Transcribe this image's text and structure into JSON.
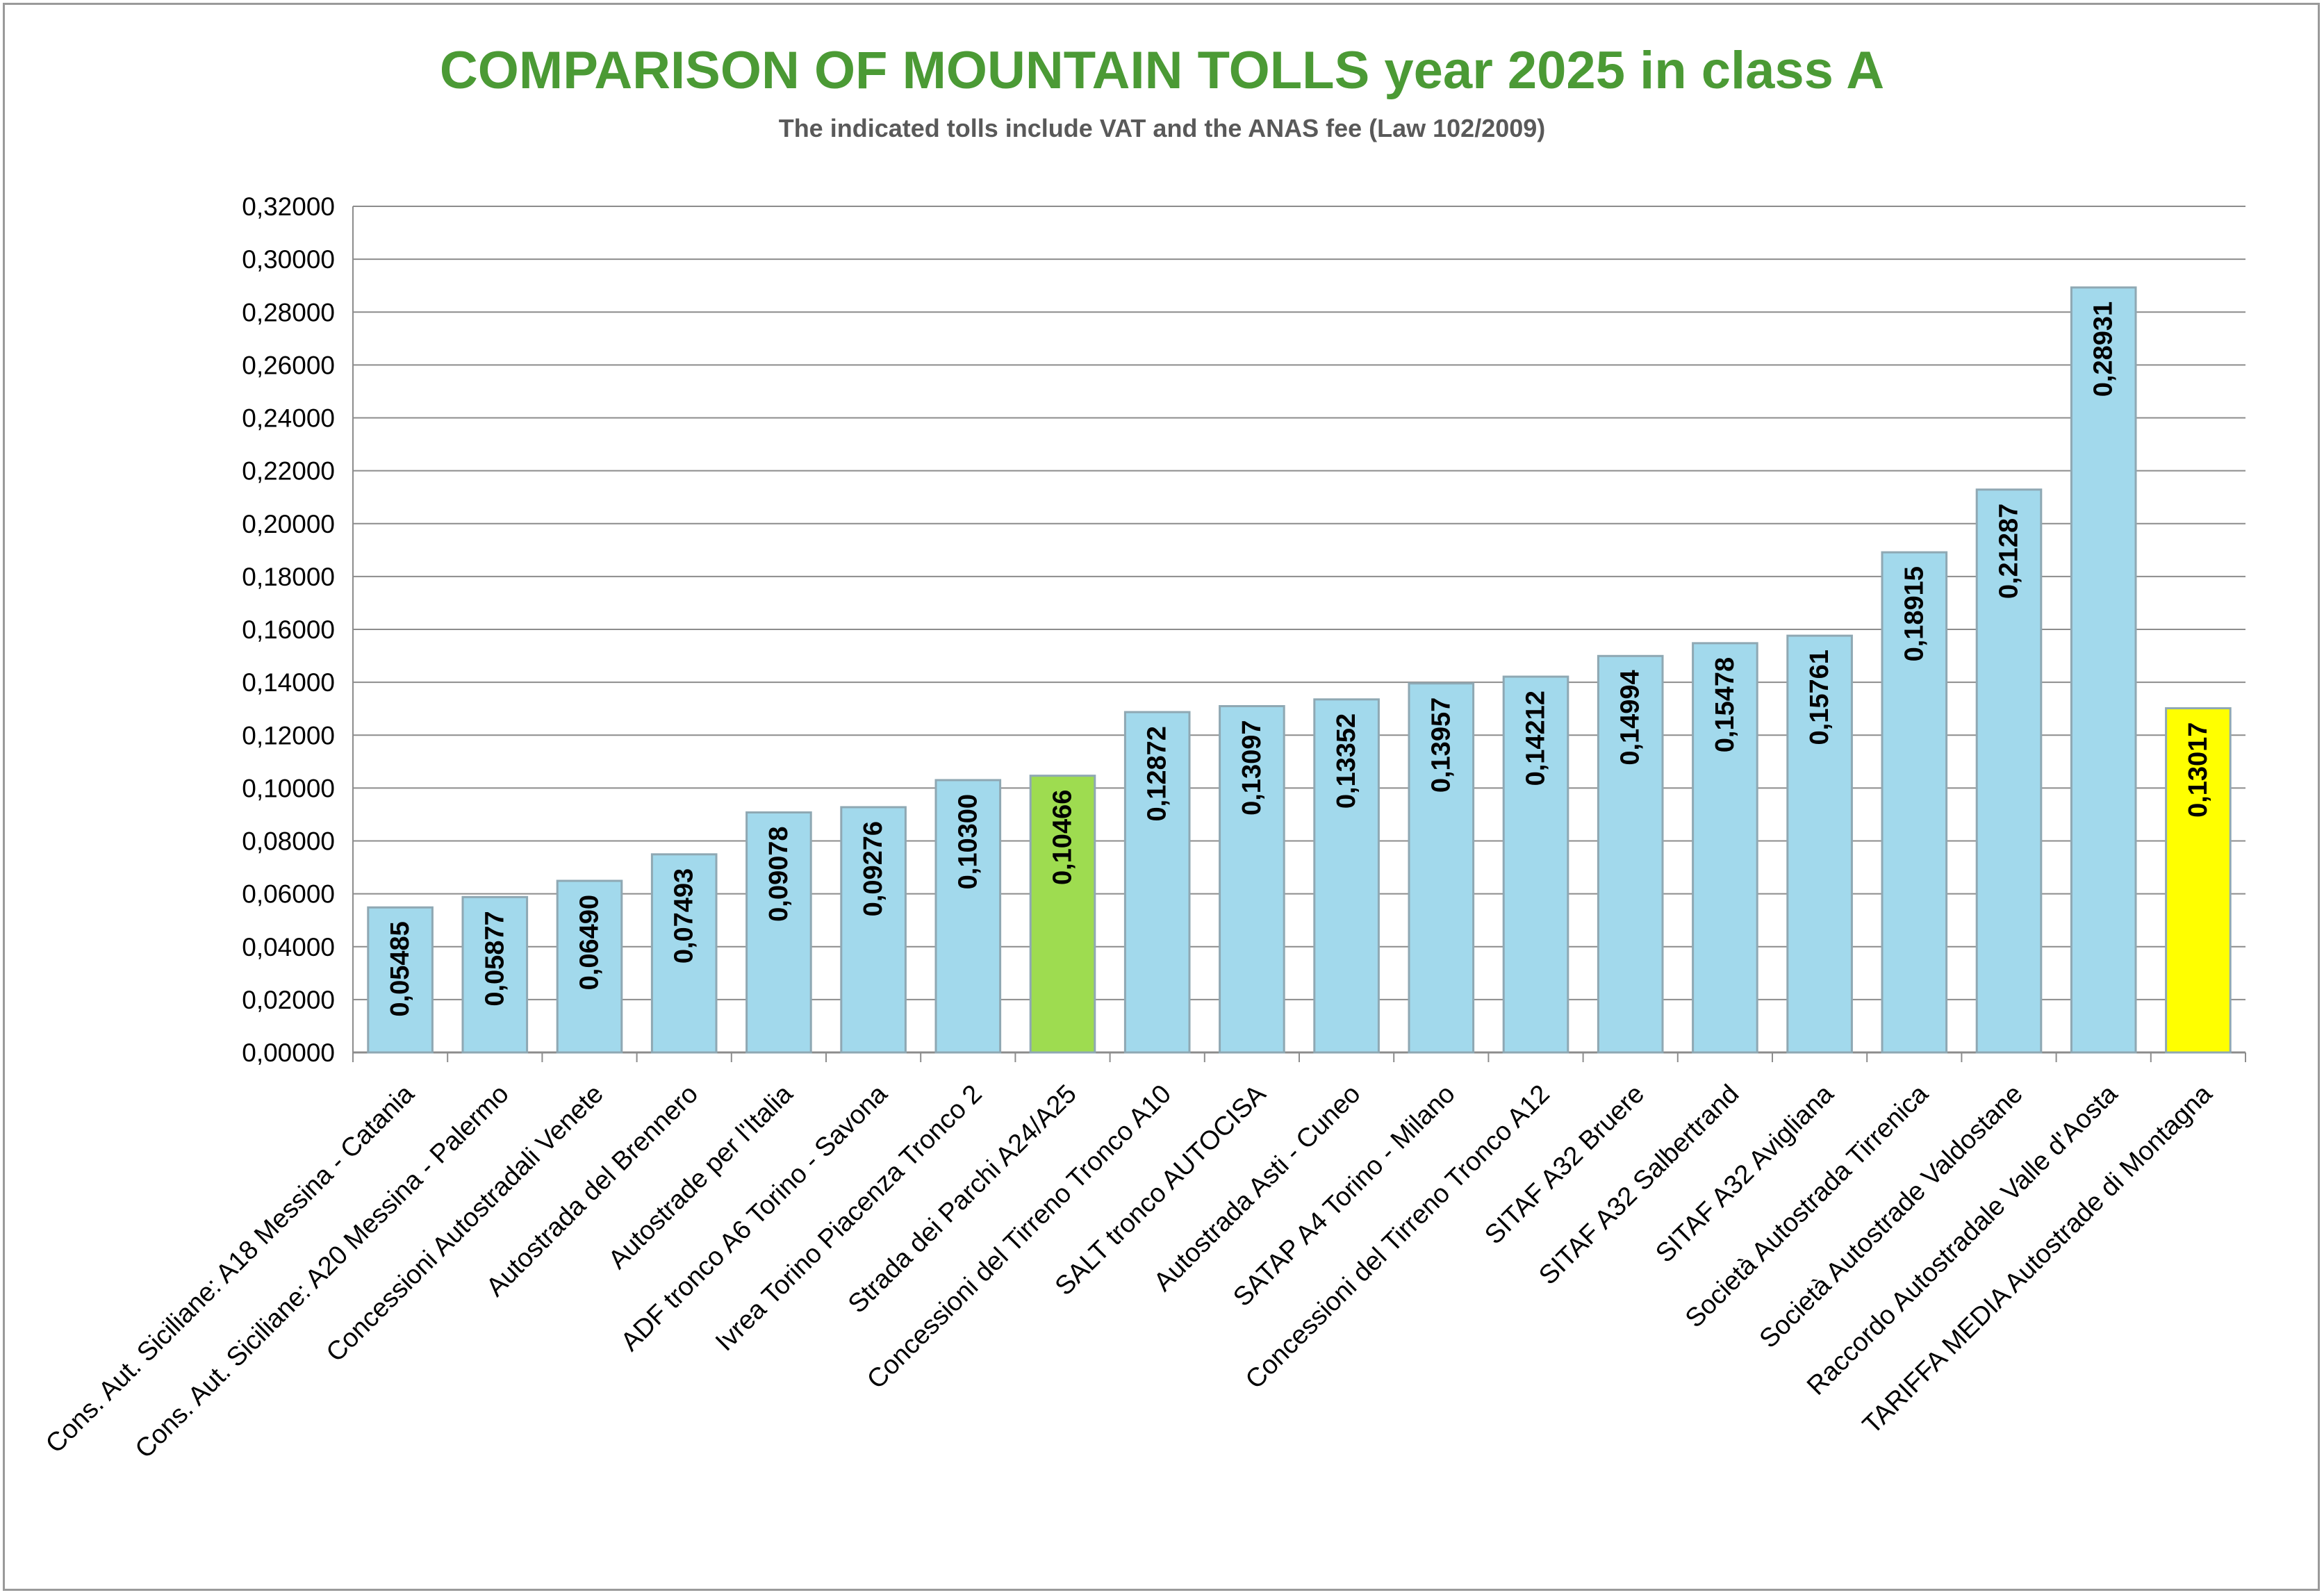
{
  "title": "COMPARISON OF MOUNTAIN TOLLS year 2025 in class A",
  "subtitle": "The indicated tolls include VAT and the ANAS fee (Law 102/2009)",
  "colors": {
    "title": "#4b9a35",
    "subtitle": "#595959",
    "bar_default": "#a2d9ec",
    "bar_highlight_green": "#9edc50",
    "bar_highlight_yellow": "#ffff00",
    "bar_border": "#8fa8b3",
    "gridline": "#8c8c8c",
    "axis_text": "#000000"
  },
  "chart_data": {
    "type": "bar",
    "orientation": "vertical",
    "ylim": [
      0,
      0.32
    ],
    "yticks": [
      0,
      0.02,
      0.04,
      0.06,
      0.08,
      0.1,
      0.12,
      0.14,
      0.16,
      0.18,
      0.2,
      0.22,
      0.24,
      0.26,
      0.28,
      0.3,
      0.32
    ],
    "ytick_labels": [
      "0,00000",
      "0,02000",
      "0,04000",
      "0,06000",
      "0,08000",
      "0,10000",
      "0,12000",
      "0,14000",
      "0,16000",
      "0,18000",
      "0,20000",
      "0,22000",
      "0,24000",
      "0,26000",
      "0,28000",
      "0,30000",
      "0,32000"
    ],
    "grid": true,
    "legend": false,
    "categories": [
      "Cons. Aut. Siciliane: A18 Messina - Catania",
      "Cons. Aut. Siciliane: A20 Messina - Palermo",
      "Concessioni Autostradali Venete",
      "Autostrada del Brennero",
      "Autostrade per l'Italia",
      "ADF tronco A6  Torino - Savona",
      "Ivrea Torino Piacenza Tronco 2",
      "Strada dei Parchi  A24/A25",
      "Concessioni del Tirreno Tronco A10",
      "SALT tronco AUTOCISA",
      "Autostrada Asti - Cuneo",
      "SATAP  A4  Torino - Milano",
      "Concessioni del Tirreno Tronco A12",
      "SITAF  A32 Bruere",
      "SITAF  A32 Salbertrand",
      "SITAF  A32 Avigliana",
      "Società Autostrada Tirrenica",
      "Società Autostrade Valdostane",
      "Raccordo Autostradale Valle d'Aosta",
      "TARIFFA MEDIA Autostrade di Montagna"
    ],
    "values": [
      0.05485,
      0.05877,
      0.0649,
      0.07493,
      0.09078,
      0.09276,
      0.103,
      0.10466,
      0.12872,
      0.13097,
      0.13352,
      0.13957,
      0.14212,
      0.14994,
      0.15478,
      0.15761,
      0.18915,
      0.21287,
      0.28931,
      0.13017
    ],
    "value_labels": [
      "0,05485",
      "0,05877",
      "0,06490",
      "0,07493",
      "0,09078",
      "0,09276",
      "0,10300",
      "0,10466",
      "0,12872",
      "0,13097",
      "0,13352",
      "0,13957",
      "0,14212",
      "0,14994",
      "0,15478",
      "0,15761",
      "0,18915",
      "0,21287",
      "0,28931",
      "0,13017"
    ],
    "bar_colors": [
      "#a2d9ec",
      "#a2d9ec",
      "#a2d9ec",
      "#a2d9ec",
      "#a2d9ec",
      "#a2d9ec",
      "#a2d9ec",
      "#9edc50",
      "#a2d9ec",
      "#a2d9ec",
      "#a2d9ec",
      "#a2d9ec",
      "#a2d9ec",
      "#a2d9ec",
      "#a2d9ec",
      "#a2d9ec",
      "#a2d9ec",
      "#a2d9ec",
      "#a2d9ec",
      "#ffff00"
    ]
  }
}
